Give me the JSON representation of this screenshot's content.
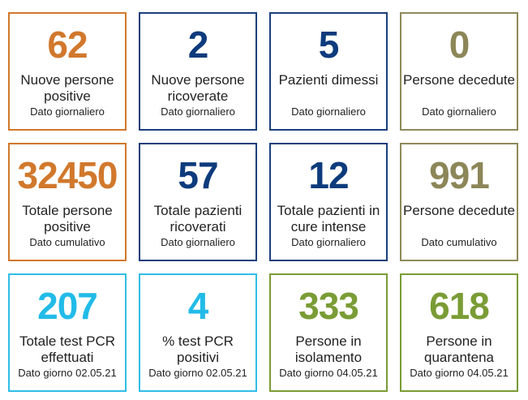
{
  "colors": {
    "orange": "#d1782c",
    "navy": "#0d3b7c",
    "olive": "#8c8658",
    "cyan": "#22bbe8",
    "green": "#7a9c35"
  },
  "cards": [
    {
      "value": "62",
      "label": "Nuove persone positive",
      "sub": "Dato giornaliero"
    },
    {
      "value": "2",
      "label": "Nuove persone ricoverate",
      "sub": "Dato giornaliero"
    },
    {
      "value": "5",
      "label": "Pazienti dimessi",
      "sub": "Dato giornaliero"
    },
    {
      "value": "0",
      "label": "Persone decedute",
      "sub": "Dato giornaliero"
    },
    {
      "value": "32450",
      "label": "Totale persone positive",
      "sub": "Dato cumulativo"
    },
    {
      "value": "57",
      "label": "Totale pazienti ricoverati",
      "sub": "Dato giornaliero"
    },
    {
      "value": "12",
      "label": "Totale pazienti in cure intense",
      "sub": "Dato giornaliero"
    },
    {
      "value": "991",
      "label": "Persone decedute",
      "sub": "Dato cumulativo"
    },
    {
      "value": "207",
      "label": "Totale test PCR effettuati",
      "sub": "Dato giorno 02.05.21"
    },
    {
      "value": "4",
      "label": "% test PCR positivi",
      "sub": "Dato giorno 02.05.21"
    },
    {
      "value": "333",
      "label": "Persone in isolamento",
      "sub": "Dato giorno 04.05.21"
    },
    {
      "value": "618",
      "label": "Persone in quarantena",
      "sub": "Dato giorno 04.05.21"
    }
  ]
}
